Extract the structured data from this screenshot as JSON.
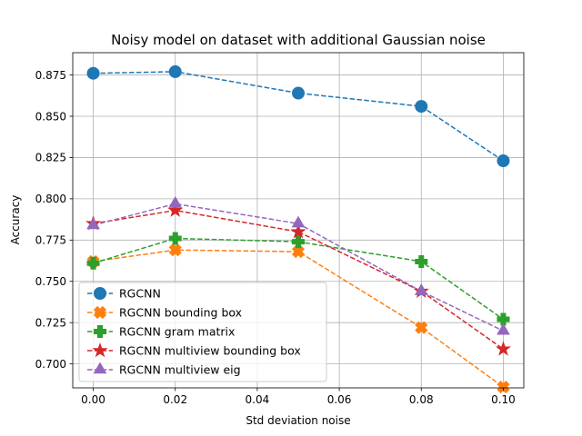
{
  "chart_data": {
    "type": "line",
    "title": "Noisy model on dataset with additional Gaussian noise",
    "xlabel": "Std deviation noise",
    "ylabel": "Accuracy",
    "xlim": [
      -0.005,
      0.105
    ],
    "ylim": [
      0.6855,
      0.8885
    ],
    "x_ticks": [
      "0.00",
      "0.02",
      "0.04",
      "0.06",
      "0.08",
      "0.10"
    ],
    "x_tick_values": [
      0.0,
      0.02,
      0.04,
      0.06,
      0.08,
      0.1
    ],
    "y_ticks": [
      "0.700",
      "0.725",
      "0.750",
      "0.775",
      "0.800",
      "0.825",
      "0.850",
      "0.875"
    ],
    "y_tick_values": [
      0.7,
      0.725,
      0.75,
      0.775,
      0.8,
      0.825,
      0.85,
      0.875
    ],
    "grid": true,
    "legend_position": "lower-left",
    "x": [
      0.0,
      0.02,
      0.05,
      0.08,
      0.1
    ],
    "series": [
      {
        "name": "RGCNN",
        "color": "#1f77b4",
        "marker": "circle",
        "values": [
          0.876,
          0.877,
          0.864,
          0.856,
          0.823
        ]
      },
      {
        "name": "RGCNN bounding box",
        "color": "#ff7f0e",
        "marker": "x-filled",
        "values": [
          0.762,
          0.769,
          0.768,
          0.722,
          0.686
        ]
      },
      {
        "name": "RGCNN gram matrix",
        "color": "#2ca02c",
        "marker": "plus-filled",
        "values": [
          0.761,
          0.776,
          0.774,
          0.762,
          0.727
        ]
      },
      {
        "name": "RGCNN multiview bounding box",
        "color": "#d62728",
        "marker": "star",
        "values": [
          0.785,
          0.793,
          0.78,
          0.744,
          0.709
        ]
      },
      {
        "name": "RGCNN multiview eig",
        "color": "#9467bd",
        "marker": "triangle",
        "values": [
          0.784,
          0.797,
          0.785,
          0.744,
          0.72
        ]
      }
    ]
  }
}
